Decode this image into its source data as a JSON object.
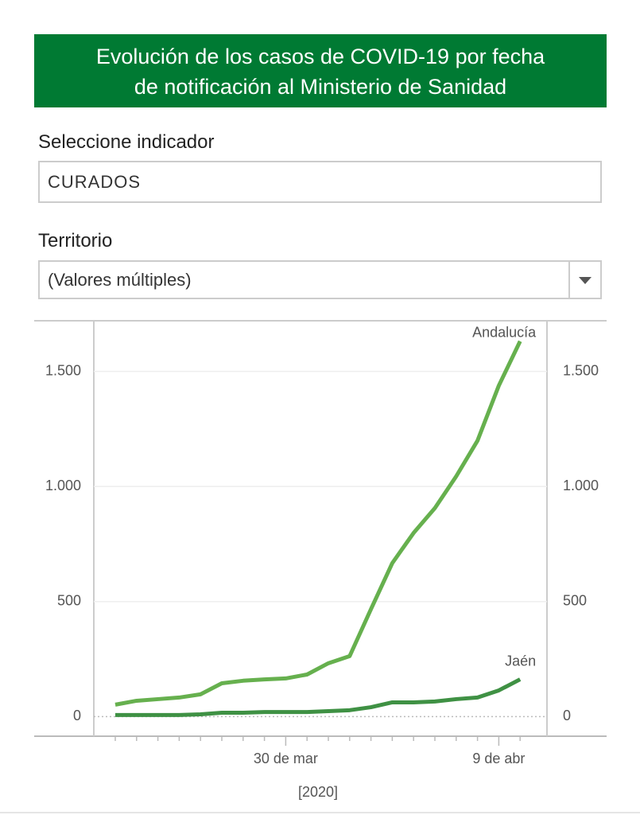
{
  "header": {
    "title_line1": "Evolución de los casos de COVID-19 por fecha",
    "title_line2": "de notificación al Ministerio de Sanidad"
  },
  "indicator": {
    "label": "Seleccione indicador",
    "value": "CURADOS"
  },
  "territory": {
    "label": "Territorio",
    "value": "(Valores múltiples)"
  },
  "chart_data": {
    "type": "line",
    "x_label": "[2020]",
    "categories": [
      null,
      null,
      null,
      null,
      null,
      null,
      null,
      null,
      "30 de mar",
      null,
      null,
      null,
      null,
      null,
      null,
      null,
      null,
      null,
      "9 de abr",
      null
    ],
    "series": [
      {
        "name": "Andalucía",
        "color": "#66b04e",
        "values": [
          52,
          69,
          76,
          83,
          97,
          145,
          156,
          162,
          166,
          183,
          232,
          263,
          467,
          667,
          798,
          906,
          1044,
          1199,
          1438,
          1631
        ]
      },
      {
        "name": "Jaén",
        "color": "#3f9144",
        "values": [
          7,
          7,
          7,
          7,
          10,
          17,
          17,
          20,
          20,
          20,
          24,
          28,
          41,
          62,
          62,
          66,
          76,
          83,
          114,
          162
        ]
      }
    ],
    "ylim": [
      -85,
      1720
    ],
    "yticks": [
      0,
      500,
      {
        "value": 1000,
        "label": "1.000"
      },
      {
        "value": 1500,
        "label": "1.500"
      }
    ],
    "grid": true
  }
}
